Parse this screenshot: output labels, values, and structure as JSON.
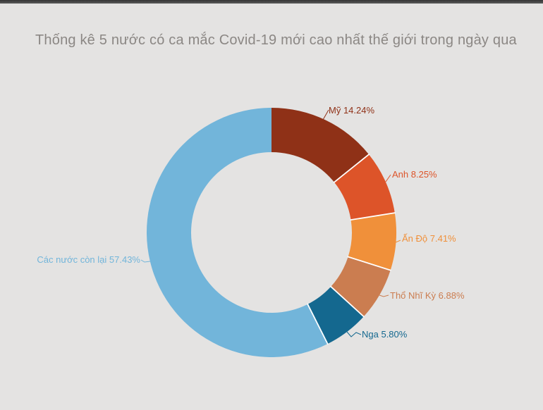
{
  "page": {
    "background": "#e4e3e2",
    "top_bar_color": "#4a4a4a"
  },
  "chart_data": {
    "type": "pie",
    "subtype": "donut",
    "title": "Thống kê 5 nước có ca mắc Covid-19 mới cao nhất thế giới trong ngày qua",
    "legend": "none",
    "grid": false,
    "start_angle_deg": 0,
    "direction": "clockwise",
    "inner_radius_ratio": 0.644,
    "units": "%",
    "series": [
      {
        "label": "Mỹ",
        "value": 14.24,
        "display": "Mỹ 14.24%",
        "color": "#8f3117"
      },
      {
        "label": "Anh",
        "value": 8.25,
        "display": "Anh 8.25%",
        "color": "#dd5429"
      },
      {
        "label": "Ấn Độ",
        "value": 7.41,
        "display": "Ấn Độ 7.41%",
        "color": "#f0903a"
      },
      {
        "label": "Thổ Nhĩ Kỳ",
        "value": 6.88,
        "display": "Thổ Nhĩ Kỳ 6.88%",
        "color": "#cb7d50"
      },
      {
        "label": "Nga",
        "value": 5.8,
        "display": "Nga 5.80%",
        "color": "#14688f"
      },
      {
        "label": "Các nước còn lại",
        "value": 57.43,
        "display": "Các nước còn lại 57.43%",
        "color": "#72b5da"
      }
    ]
  }
}
